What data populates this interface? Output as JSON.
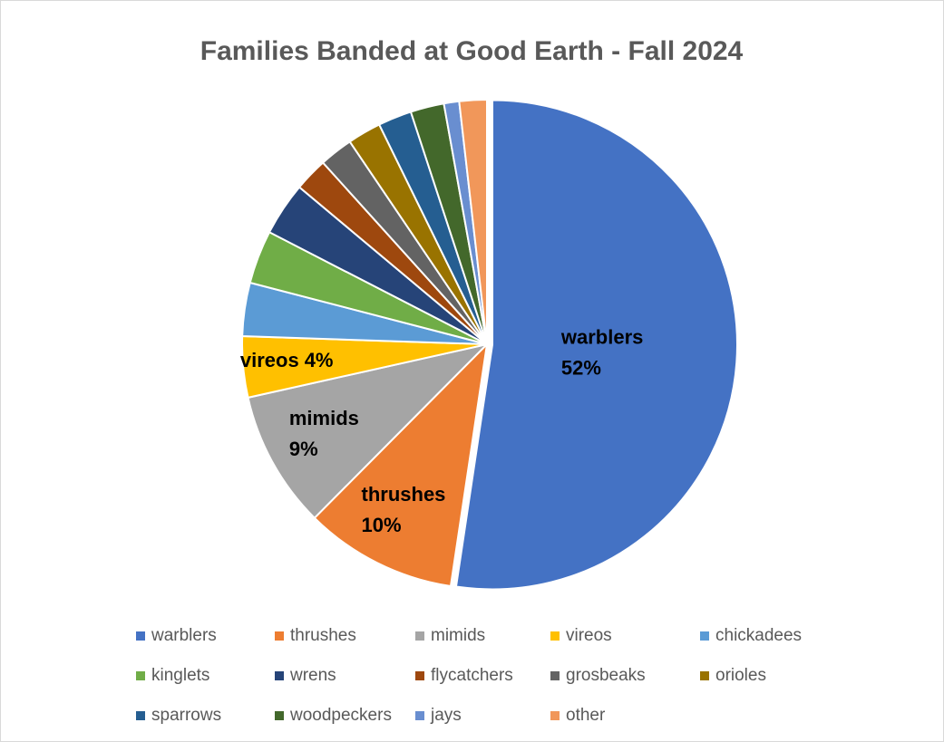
{
  "chart_data": {
    "type": "pie",
    "title": "Families Banded at Good Earth - Fall 2024",
    "categories": [
      "warblers",
      "thrushes",
      "mimids",
      "vireos",
      "chickadees",
      "kinglets",
      "wrens",
      "flycatchers",
      "grosbeaks",
      "orioles",
      "sparrows",
      "woodpeckers",
      "jays",
      "other"
    ],
    "values": [
      52,
      10,
      9,
      4,
      3.5,
      3.5,
      3.5,
      2.2,
      2.2,
      2.2,
      2.2,
      2.2,
      1,
      1.8
    ],
    "value_labels": [
      "52%",
      "10%",
      "9%",
      "4%",
      null,
      null,
      null,
      null,
      null,
      null,
      null,
      null,
      null,
      null
    ],
    "colors": [
      "#4472c4",
      "#ed7d31",
      "#a5a5a5",
      "#ffc000",
      "#5b9bd5",
      "#70ad47",
      "#264478",
      "#9e480e",
      "#636363",
      "#997300",
      "#255e91",
      "#43682b",
      "#698ed0",
      "#f1975a"
    ],
    "legend": "bottom"
  }
}
